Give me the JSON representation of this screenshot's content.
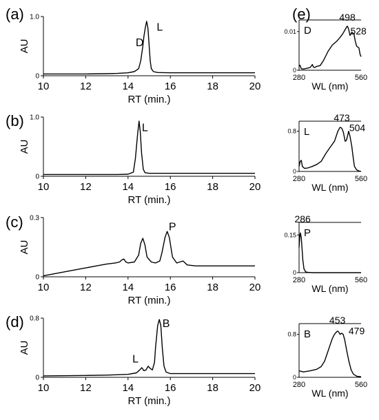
{
  "panel_letters": [
    "(a)",
    "(b)",
    "(c)",
    "(d)",
    "(e)"
  ],
  "chart_data": [
    {
      "type": "line",
      "panel": "(a)",
      "xlabel": "RT (min.)",
      "ylabel": "AU",
      "xlim": [
        10,
        20
      ],
      "ylim": [
        0,
        1.0
      ],
      "xticks": [
        "10",
        "12",
        "14",
        "16",
        "18",
        "20"
      ],
      "yticks": [
        {
          "value": 0,
          "label": "0"
        },
        {
          "value": 1.0,
          "label": "1.0"
        }
      ],
      "annotations": [
        {
          "text": "D",
          "x": 14.55,
          "y": 0.5
        },
        {
          "text": "L",
          "x": 15.5,
          "y": 0.76
        }
      ],
      "series": [
        {
          "x": [
            10,
            11,
            12,
            13,
            13.5,
            14,
            14.3,
            14.5,
            14.6,
            14.7,
            14.75,
            14.82,
            14.88,
            14.94,
            15.0,
            15.05,
            15.1,
            15.2,
            15.4,
            16,
            17,
            18,
            20
          ],
          "y": [
            0.03,
            0.03,
            0.03,
            0.035,
            0.04,
            0.05,
            0.07,
            0.12,
            0.25,
            0.5,
            0.66,
            0.82,
            0.92,
            0.8,
            0.5,
            0.25,
            0.12,
            0.07,
            0.055,
            0.05,
            0.05,
            0.05,
            0.05
          ]
        }
      ]
    },
    {
      "type": "line",
      "panel": "(b)",
      "xlabel": "RT (min.)",
      "ylabel": "AU",
      "xlim": [
        10,
        20
      ],
      "ylim": [
        0,
        1.0
      ],
      "xticks": [
        "10",
        "12",
        "14",
        "16",
        "18",
        "20"
      ],
      "yticks": [
        {
          "value": 0,
          "label": "0"
        },
        {
          "value": 1.0,
          "label": "1.0"
        }
      ],
      "annotations": [
        {
          "text": "L",
          "x": 14.8,
          "y": 0.76
        }
      ],
      "series": [
        {
          "x": [
            10,
            12,
            13.5,
            14,
            14.25,
            14.35,
            14.45,
            14.52,
            14.58,
            14.64,
            14.72,
            14.8,
            15.0,
            16,
            18,
            20
          ],
          "y": [
            0.03,
            0.03,
            0.03,
            0.035,
            0.07,
            0.3,
            0.7,
            0.93,
            0.75,
            0.4,
            0.12,
            0.06,
            0.05,
            0.05,
            0.05,
            0.05
          ]
        }
      ]
    },
    {
      "type": "line",
      "panel": "(c)",
      "xlabel": "RT (min.)",
      "ylabel": "AU",
      "xlim": [
        10,
        20
      ],
      "ylim": [
        0,
        0.3
      ],
      "xticks": [
        "10",
        "12",
        "14",
        "16",
        "18",
        "20"
      ],
      "yticks": [
        {
          "value": 0,
          "label": "0"
        },
        {
          "value": 0.3,
          "label": "0.3"
        }
      ],
      "annotations": [
        {
          "text": "P",
          "x": 16.1,
          "y": 0.235
        }
      ],
      "series": [
        {
          "x": [
            10,
            11,
            12,
            12.5,
            13,
            13.4,
            13.6,
            13.7,
            13.8,
            13.9,
            14.0,
            14.3,
            14.5,
            14.6,
            14.7,
            14.8,
            14.9,
            15.1,
            15.3,
            15.5,
            15.6,
            15.75,
            15.85,
            15.95,
            16.1,
            16.3,
            16.45,
            16.6,
            16.8,
            17.2,
            18,
            20
          ],
          "y": [
            0.005,
            0.025,
            0.045,
            0.055,
            0.065,
            0.07,
            0.075,
            0.085,
            0.09,
            0.075,
            0.07,
            0.075,
            0.11,
            0.17,
            0.195,
            0.16,
            0.1,
            0.075,
            0.07,
            0.08,
            0.12,
            0.2,
            0.23,
            0.2,
            0.1,
            0.07,
            0.075,
            0.08,
            0.06,
            0.055,
            0.055,
            0.055
          ]
        }
      ]
    },
    {
      "type": "line",
      "panel": "(d)",
      "xlabel": "RT (min.)",
      "ylabel": "AU",
      "xlim": [
        10,
        20
      ],
      "ylim": [
        0,
        0.8
      ],
      "xticks": [
        "10",
        "12",
        "14",
        "16",
        "18",
        "20"
      ],
      "yticks": [
        {
          "value": 0,
          "label": "0"
        },
        {
          "value": 0.8,
          "label": "0.8"
        }
      ],
      "annotations": [
        {
          "text": "L",
          "x": 14.35,
          "y": 0.2
        },
        {
          "text": "B",
          "x": 15.8,
          "y": 0.68
        }
      ],
      "series": [
        {
          "x": [
            10,
            12,
            13,
            14,
            14.4,
            14.55,
            14.65,
            14.75,
            14.85,
            14.95,
            15.05,
            15.15,
            15.25,
            15.3,
            15.4,
            15.48,
            15.55,
            15.62,
            15.7,
            15.8,
            16,
            17,
            18,
            20
          ],
          "y": [
            0.02,
            0.025,
            0.03,
            0.04,
            0.06,
            0.1,
            0.13,
            0.09,
            0.1,
            0.15,
            0.12,
            0.1,
            0.2,
            0.4,
            0.7,
            0.78,
            0.7,
            0.4,
            0.15,
            0.07,
            0.05,
            0.05,
            0.05,
            0.05
          ]
        }
      ]
    },
    {
      "type": "line",
      "panel": "(e)",
      "name": "D",
      "xlabel": "WL (nm)",
      "xlim": [
        280,
        560
      ],
      "ylim": [
        0,
        0.013
      ],
      "xticks": [
        "280",
        "560"
      ],
      "yticks": [
        {
          "value": 0,
          "label": "0"
        },
        {
          "value": 0.01,
          "label": "0.01"
        }
      ],
      "annotations": [
        {
          "text": "498",
          "x": 498,
          "y": 0.0128
        },
        {
          "text": "528",
          "x": 548,
          "y": 0.0093
        }
      ],
      "series": [
        {
          "x": [
            280,
            284,
            290,
            300,
            315,
            330,
            340,
            345,
            350,
            360,
            375,
            390,
            410,
            430,
            450,
            465,
            478,
            488,
            495,
            498,
            503,
            510,
            518,
            524,
            528,
            534,
            540,
            550,
            556,
            560
          ],
          "y": [
            0.001,
            0.0013,
            0.0004,
            0.0003,
            0.0005,
            0.0007,
            0.0015,
            0.0008,
            0.0007,
            0.001,
            0.0012,
            0.0025,
            0.0048,
            0.0065,
            0.0075,
            0.0085,
            0.0095,
            0.0105,
            0.0112,
            0.0114,
            0.0108,
            0.009,
            0.0098,
            0.0096,
            0.0093,
            0.0075,
            0.0062,
            0.0058,
            0.004,
            0.0035
          ]
        }
      ]
    },
    {
      "type": "line",
      "panel": "(e)",
      "name": "L",
      "xlabel": "WL (nm)",
      "xlim": [
        280,
        560
      ],
      "ylim": [
        0,
        1.0
      ],
      "xticks": [
        "280",
        "560"
      ],
      "yticks": [
        {
          "value": 0,
          "label": "0"
        },
        {
          "value": 0.8,
          "label": "0.8"
        }
      ],
      "annotations": [
        {
          "text": "473",
          "x": 473,
          "y": 1.0
        },
        {
          "text": "504",
          "x": 543,
          "y": 0.8
        }
      ],
      "series": [
        {
          "x": [
            280,
            285,
            290,
            295,
            305,
            320,
            340,
            360,
            380,
            400,
            420,
            440,
            455,
            465,
            473,
            480,
            488,
            494,
            504,
            510,
            518,
            525,
            530,
            540,
            550,
            560
          ],
          "y": [
            0.1,
            0.2,
            0.22,
            0.1,
            0.06,
            0.07,
            0.1,
            0.14,
            0.2,
            0.35,
            0.48,
            0.6,
            0.8,
            0.88,
            0.86,
            0.78,
            0.6,
            0.62,
            0.8,
            0.7,
            0.5,
            0.25,
            0.1,
            0.03,
            0.01,
            0.0
          ]
        }
      ]
    },
    {
      "type": "line",
      "panel": "(e)",
      "name": "P",
      "xlabel": "WL (nm)",
      "xlim": [
        280,
        560
      ],
      "ylim": [
        0,
        0.2
      ],
      "xticks": [
        "280",
        "560"
      ],
      "yticks": [
        {
          "value": 0,
          "label": "0"
        },
        {
          "value": 0.15,
          "label": "0.15"
        }
      ],
      "annotations": [
        {
          "text": "286",
          "x": 296,
          "y": 0.2
        }
      ],
      "series": [
        {
          "x": [
            280,
            284,
            286,
            290,
            293,
            297,
            302,
            310,
            320,
            340,
            400,
            500,
            560
          ],
          "y": [
            0.1,
            0.15,
            0.158,
            0.14,
            0.1,
            0.05,
            0.015,
            0.003,
            0.001,
            0.0,
            0.0,
            0.0,
            0.0
          ]
        }
      ]
    },
    {
      "type": "line",
      "panel": "(e)",
      "name": "B",
      "xlabel": "WL (nm)",
      "xlim": [
        280,
        560
      ],
      "ylim": [
        0,
        1.0
      ],
      "xticks": [
        "280",
        "560"
      ],
      "yticks": [
        {
          "value": 0,
          "label": "0"
        },
        {
          "value": 0.8,
          "label": "0.8"
        }
      ],
      "annotations": [
        {
          "text": "453",
          "x": 453,
          "y": 1.0
        },
        {
          "text": "479",
          "x": 540,
          "y": 0.8
        }
      ],
      "series": [
        {
          "x": [
            280,
            300,
            330,
            360,
            380,
            395,
            410,
            420,
            430,
            440,
            448,
            453,
            458,
            465,
            472,
            479,
            486,
            495,
            505,
            515,
            525,
            540,
            560
          ],
          "y": [
            0.12,
            0.1,
            0.12,
            0.15,
            0.2,
            0.3,
            0.48,
            0.6,
            0.72,
            0.8,
            0.84,
            0.86,
            0.85,
            0.8,
            0.82,
            0.8,
            0.7,
            0.5,
            0.3,
            0.14,
            0.06,
            0.02,
            0.01
          ]
        }
      ]
    }
  ]
}
